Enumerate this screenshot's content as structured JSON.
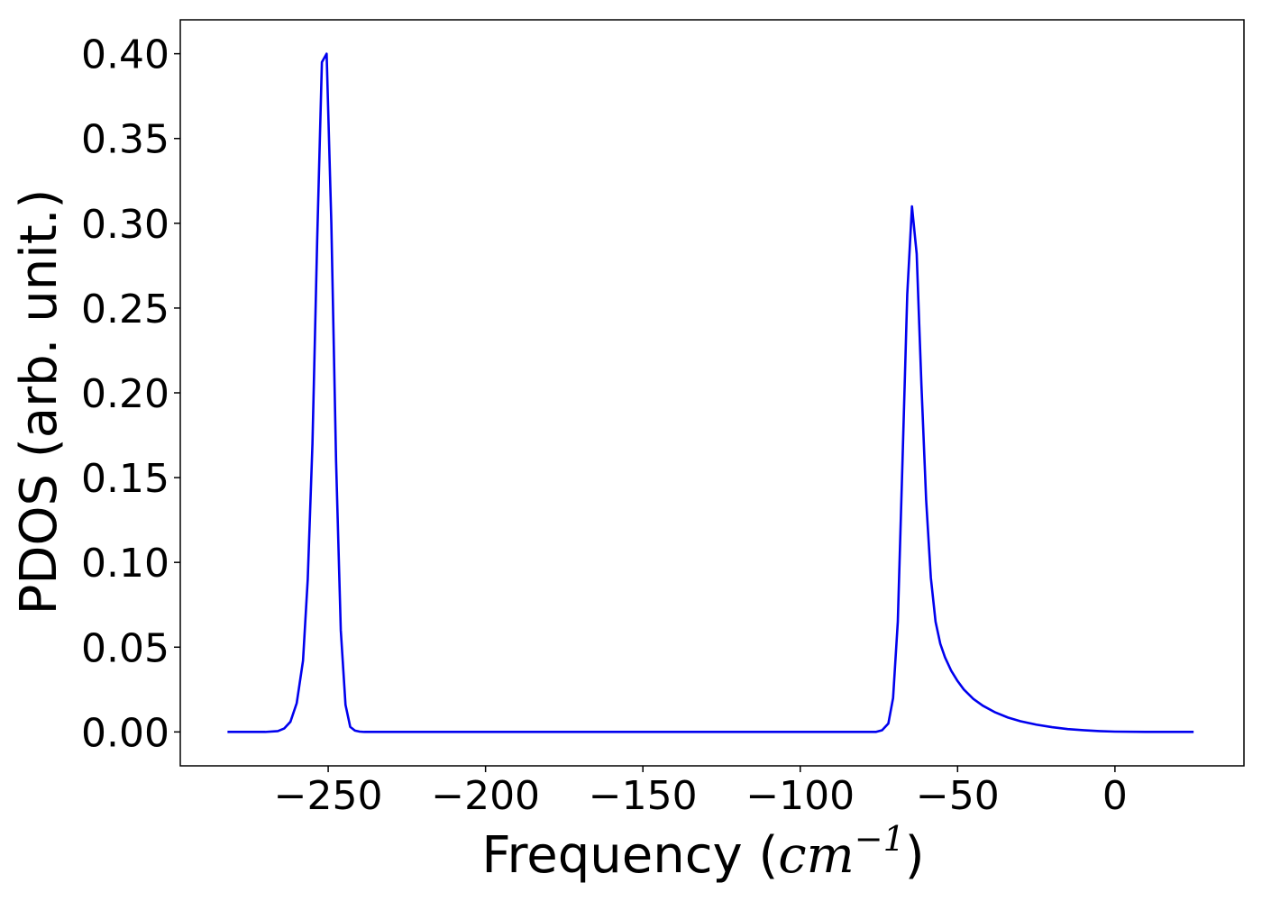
{
  "chart_data": {
    "type": "line",
    "title": "",
    "xlabel_prefix": "Frequency (",
    "xlabel_unit": "cm",
    "xlabel_exponent": "−1",
    "xlabel_suffix": ")",
    "ylabel": "PDOS (arb. unit.)",
    "xlim": [
      -297,
      41
    ],
    "ylim": [
      -0.02,
      0.42
    ],
    "x_ticks": [
      -250,
      -200,
      -150,
      -100,
      -50,
      0
    ],
    "x_tick_labels": [
      "−250",
      "−200",
      "−150",
      "−100",
      "−50",
      "0"
    ],
    "y_ticks": [
      0.0,
      0.05,
      0.1,
      0.15,
      0.2,
      0.25,
      0.3,
      0.35,
      0.4
    ],
    "y_tick_labels": [
      "0.00",
      "0.05",
      "0.10",
      "0.15",
      "0.20",
      "0.25",
      "0.30",
      "0.35",
      "0.40"
    ],
    "grid": false,
    "legend": "none",
    "series": [
      {
        "color": "#0000ee",
        "x": [
          -282,
          -270,
          -266,
          -264,
          -262,
          -260,
          -258,
          -256.5,
          -255,
          -253.5,
          -252,
          -250.5,
          -249,
          -247.5,
          -246,
          -244.5,
          -243,
          -241.5,
          -240,
          -238.5,
          -237,
          -235,
          -230,
          -200,
          -150,
          -100,
          -76,
          -74,
          -72,
          -70.5,
          -69,
          -67.5,
          -66,
          -64.5,
          -63,
          -61.5,
          -60,
          -58.5,
          -57,
          -55.5,
          -54,
          -52,
          -50,
          -48,
          -45,
          -42,
          -38,
          -34,
          -30,
          -25,
          -20,
          -15,
          -10,
          -5,
          0,
          10,
          25
        ],
        "y": [
          0,
          0,
          0.0005,
          0.002,
          0.006,
          0.017,
          0.042,
          0.09,
          0.17,
          0.29,
          0.395,
          0.4,
          0.3,
          0.16,
          0.06,
          0.016,
          0.003,
          0.0008,
          0.0002,
          0,
          0,
          0,
          0,
          0,
          0,
          0,
          0,
          0.001,
          0.005,
          0.02,
          0.065,
          0.16,
          0.258,
          0.31,
          0.282,
          0.205,
          0.137,
          0.091,
          0.065,
          0.052,
          0.044,
          0.036,
          0.03,
          0.025,
          0.0195,
          0.0155,
          0.0115,
          0.0085,
          0.0063,
          0.0043,
          0.0028,
          0.0017,
          0.001,
          0.0005,
          0.0002,
          0,
          0
        ]
      }
    ]
  }
}
